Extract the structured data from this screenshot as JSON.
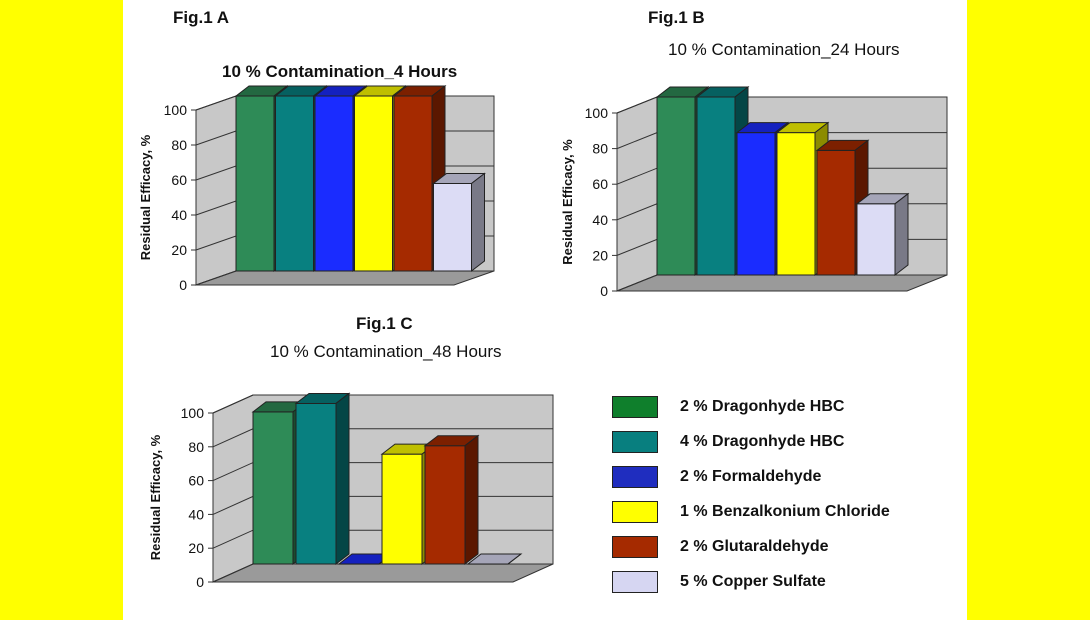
{
  "figures": {
    "a_label": "Fig.1  A",
    "b_label": "Fig.1 B",
    "c_label": "Fig.1 C"
  },
  "legend": [
    {
      "label": "2 % Dragonhyde HBC",
      "color": "#0f7f2c"
    },
    {
      "label": "4 % Dragonhyde HBC",
      "color": "#087f7f"
    },
    {
      "label": "2 %  Formaldehyde",
      "color": "#1f2dbf"
    },
    {
      "label": "1 % Benzalkonium Chloride",
      "color": "#ffff00"
    },
    {
      "label": "2 % Glutaraldehyde",
      "color": "#a52a00"
    },
    {
      "label": "5 % Copper Sulfate",
      "color": "#d6d6f2"
    }
  ],
  "chart_data": [
    {
      "type": "bar",
      "title": "10 % Contamination_4 Hours",
      "ylabel": "Residual Efficacy, %",
      "ylim": [
        0,
        100
      ],
      "yticks": [
        "0",
        "20",
        "40",
        "60",
        "80",
        "100"
      ],
      "series": [
        {
          "name": "2 % Dragonhyde HBC",
          "values": [
            100
          ],
          "color": "#2e8b57"
        },
        {
          "name": "4 % Dragonhyde HBC",
          "values": [
            100
          ],
          "color": "#088080"
        },
        {
          "name": "2 %  Formaldehyde",
          "values": [
            100
          ],
          "color": "#1a2cff"
        },
        {
          "name": "1 % Benzalkonium Chloride",
          "values": [
            100
          ],
          "color": "#ffff00"
        },
        {
          "name": "2 % Glutaraldehyde",
          "values": [
            100
          ],
          "color": "#a52a00"
        },
        {
          "name": "5 % Copper Sulfate",
          "values": [
            50
          ],
          "color": "#dcdcf5"
        }
      ]
    },
    {
      "type": "bar",
      "title": "10 % Contamination_24 Hours",
      "ylabel": "Residual Efficacy, %",
      "ylim": [
        0,
        100
      ],
      "yticks": [
        "0",
        "20",
        "40",
        "60",
        "80",
        "100"
      ],
      "series": [
        {
          "name": "2 % Dragonhyde HBC",
          "values": [
            100
          ],
          "color": "#2e8b57"
        },
        {
          "name": "4 % Dragonhyde HBC",
          "values": [
            100
          ],
          "color": "#088080"
        },
        {
          "name": "2 %  Formaldehyde",
          "values": [
            80
          ],
          "color": "#1a2cff"
        },
        {
          "name": "1 % Benzalkonium Chloride",
          "values": [
            80
          ],
          "color": "#ffff00"
        },
        {
          "name": "2 % Glutaraldehyde",
          "values": [
            70
          ],
          "color": "#a52a00"
        },
        {
          "name": "5 % Copper Sulfate",
          "values": [
            40
          ],
          "color": "#dcdcf5"
        }
      ]
    },
    {
      "type": "bar",
      "title": "10 % Contamination_48 Hours",
      "ylabel": "Residual Efficacy, %",
      "ylim": [
        0,
        100
      ],
      "yticks": [
        "0",
        "20",
        "40",
        "60",
        "80",
        "100"
      ],
      "series": [
        {
          "name": "2 % Dragonhyde HBC",
          "values": [
            90
          ],
          "color": "#2e8b57"
        },
        {
          "name": "4 % Dragonhyde HBC",
          "values": [
            95
          ],
          "color": "#088080"
        },
        {
          "name": "2 %  Formaldehyde",
          "values": [
            0
          ],
          "color": "#1a2cff"
        },
        {
          "name": "1 % Benzalkonium Chloride",
          "values": [
            65
          ],
          "color": "#ffff00"
        },
        {
          "name": "2 % Glutaraldehyde",
          "values": [
            70
          ],
          "color": "#a52a00"
        },
        {
          "name": "5 % Copper Sulfate",
          "values": [
            0
          ],
          "color": "#dcdcf5"
        }
      ]
    }
  ]
}
